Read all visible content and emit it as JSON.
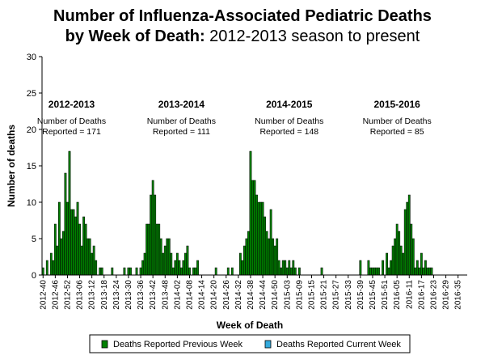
{
  "chart_data": {
    "type": "bar",
    "title_line1": "Number of Influenza-Associated Pediatric Deaths",
    "title_line2_bold": "by Week of Death:",
    "title_line2_rest": " 2012-2013 season to present",
    "xlabel": "Week of Death",
    "ylabel": "Number of deaths",
    "ylim": [
      0,
      30
    ],
    "yticks": [
      "0",
      "5",
      "10",
      "15",
      "20",
      "25",
      "30"
    ],
    "xticks": [
      "2012-40",
      "2012-46",
      "2012-52",
      "2013-06",
      "2013-12",
      "2013-18",
      "2013-24",
      "2013-30",
      "2013-36",
      "2013-42",
      "2013-48",
      "2014-02",
      "2014-08",
      "2014-14",
      "2014-20",
      "2014-26",
      "2014-32",
      "2014-38",
      "2014-44",
      "2014-50",
      "2015-03",
      "2015-09",
      "2015-15",
      "2015-21",
      "2015-27",
      "2015-33",
      "2015-39",
      "2015-45",
      "2015-51",
      "2016-05",
      "2016-11",
      "2016-17",
      "2016-23",
      "2016-29",
      "2016-35"
    ],
    "series": [
      {
        "name": "Deaths Reported Previous Week",
        "color": "#008000",
        "values": [
          1,
          0,
          2,
          0,
          3,
          2,
          7,
          4,
          10,
          5,
          6,
          14,
          10,
          17,
          9,
          9,
          8,
          10,
          7,
          4,
          8,
          7,
          5,
          5,
          3,
          4,
          2,
          0,
          1,
          1,
          0,
          0,
          0,
          0,
          1,
          0,
          0,
          0,
          0,
          0,
          1,
          0,
          1,
          1,
          0,
          0,
          1,
          0,
          1,
          2,
          3,
          7,
          7,
          11,
          13,
          11,
          7,
          7,
          5,
          3,
          4,
          5,
          5,
          3,
          1,
          2,
          3,
          2,
          1,
          2,
          3,
          4,
          1,
          0,
          1,
          1,
          2,
          0,
          0,
          0,
          0,
          0,
          0,
          0,
          0,
          1,
          0,
          0,
          0,
          0,
          0,
          1,
          0,
          1,
          0,
          0,
          0,
          3,
          2,
          4,
          5,
          6,
          17,
          13,
          13,
          11,
          10,
          10,
          10,
          8,
          6,
          5,
          9,
          5,
          4,
          5,
          2,
          1,
          2,
          2,
          1,
          2,
          1,
          2,
          1,
          0,
          1,
          0,
          0,
          0,
          0,
          0,
          0,
          0,
          0,
          0,
          0,
          1,
          0,
          0,
          0,
          0,
          0,
          0,
          0,
          0,
          0,
          0,
          0,
          0,
          0,
          0,
          0,
          0,
          0,
          0,
          2,
          0,
          0,
          0,
          2,
          1,
          1,
          1,
          1,
          1,
          0,
          2,
          0,
          3,
          1,
          2,
          4,
          5,
          7,
          6,
          4,
          3,
          9,
          10,
          11,
          7,
          5,
          1,
          2,
          1,
          3,
          1,
          2,
          1,
          1,
          1,
          0,
          0,
          0,
          0,
          0,
          0,
          0,
          0,
          0,
          0,
          0,
          0,
          0,
          0,
          0,
          0,
          0
        ]
      },
      {
        "name": "Deaths Reported Current Week",
        "color": "#33aadd",
        "values": []
      }
    ],
    "annotations": [
      {
        "season": "2012-2013",
        "line1": "Number of Deaths",
        "line2": "Reported = 171",
        "x_week": "2013-02"
      },
      {
        "season": "2013-2014",
        "line1": "Number of Deaths",
        "line2": "Reported = 111",
        "x_week": "2014-04"
      },
      {
        "season": "2014-2015",
        "line1": "Number of Deaths",
        "line2": "Reported = 148",
        "x_week": "2015-04"
      },
      {
        "season": "2015-2016",
        "line1": "Number of Deaths",
        "line2": "Reported = 85",
        "x_week": "2016-05"
      }
    ],
    "legend_placement": "bottom"
  }
}
